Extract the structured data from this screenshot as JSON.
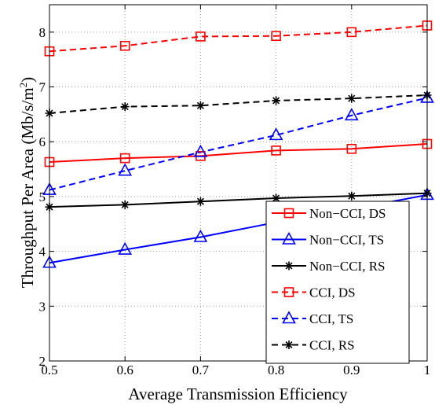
{
  "chart_data": {
    "type": "line",
    "title": "",
    "xlabel": "Average Transmission Efficiency",
    "ylabel": "Throughput Per Area (Mb/s/m",
    "ylabel_sup": "2",
    "ylabel_close": ")",
    "xlim": [
      0.5,
      1.0
    ],
    "ylim": [
      2,
      8.5
    ],
    "grid": true,
    "legend_position": "bottom-right",
    "x": [
      0.5,
      0.6,
      0.7,
      0.8,
      0.9,
      1.0
    ],
    "x_tick_labels": [
      "0.5",
      "0.6",
      "0.7",
      "0.8",
      "0.9",
      "1"
    ],
    "y_ticks": [
      2,
      3,
      4,
      5,
      6,
      7,
      8
    ],
    "y_tick_labels": [
      "2",
      "3",
      "4",
      "5",
      "6",
      "7",
      "8"
    ],
    "series": [
      {
        "name": "Non−CCI, DS",
        "color": "#ff0000",
        "dash": "solid",
        "marker": "square",
        "values": [
          5.63,
          5.7,
          5.74,
          5.84,
          5.87,
          5.96
        ]
      },
      {
        "name": "Non−CCI, TS",
        "color": "#0000ff",
        "dash": "solid",
        "marker": "triangle",
        "values": [
          3.79,
          4.03,
          4.26,
          4.53,
          4.77,
          5.03
        ]
      },
      {
        "name": "Non−CCI, RS",
        "color": "#000000",
        "dash": "solid",
        "marker": "star",
        "values": [
          4.81,
          4.85,
          4.91,
          4.97,
          5.01,
          5.06
        ]
      },
      {
        "name": "CCI, DS",
        "color": "#ff0000",
        "dash": "dashed",
        "marker": "square",
        "values": [
          7.65,
          7.75,
          7.92,
          7.93,
          8.0,
          8.12
        ]
      },
      {
        "name": "CCI, TS",
        "color": "#0000ff",
        "dash": "dashed",
        "marker": "triangle",
        "values": [
          5.12,
          5.47,
          5.81,
          6.12,
          6.48,
          6.8
        ]
      },
      {
        "name": "CCI, RS",
        "color": "#000000",
        "dash": "dashed",
        "marker": "star",
        "values": [
          6.52,
          6.64,
          6.66,
          6.75,
          6.79,
          6.85
        ]
      }
    ]
  }
}
